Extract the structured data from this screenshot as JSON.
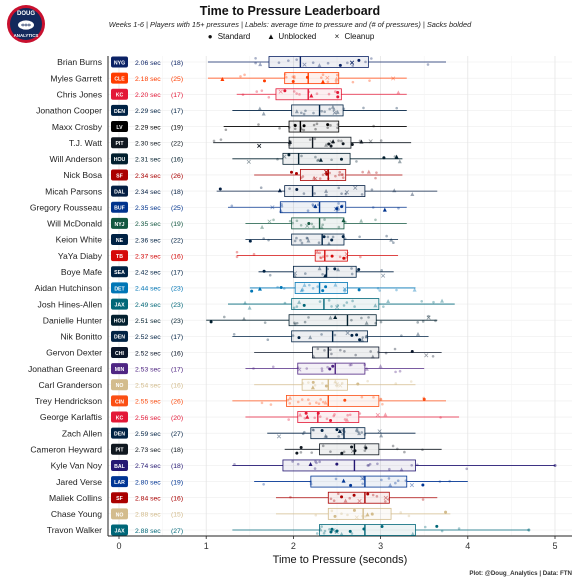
{
  "title": "Time to Pressure Leaderboard",
  "subtitle": "Weeks 1-6 | Players with 15+ pressures | Labels: average time to pressure and (# of pressures) | Sacks bolded",
  "legend": {
    "standard": "Standard",
    "unblocked": "Unblocked",
    "cleanup": "Cleanup",
    "standard_symbol": "●",
    "unblocked_symbol": "▲",
    "cleanup_symbol": "×"
  },
  "caption": "Plot: @Doug_Analytics  |  Data: FTN",
  "logo": {
    "line1": "DOUG",
    "line2": "ANALYTICS",
    "icon": "football-logo-icon"
  },
  "chart_data": {
    "type": "boxplot",
    "xlabel": "Time to Pressure (seconds)",
    "xlim": [
      0,
      5
    ],
    "xticks": [
      0,
      1,
      2,
      3,
      4,
      5
    ],
    "grid": true,
    "legend_position": "top",
    "sec_suffix": "sec",
    "players": [
      {
        "name": "Brian Burns",
        "team": "NYG",
        "color": "#0b2265",
        "avg": "2.06",
        "n": 18,
        "q1": 1.72,
        "med": 2.08,
        "q3": 2.86,
        "lo": 1.02,
        "hi": 3.75
      },
      {
        "name": "Myles Garrett",
        "team": "CLE",
        "color": "#ff3c00",
        "avg": "2.18",
        "n": 25,
        "q1": 1.9,
        "med": 2.17,
        "q3": 2.52,
        "lo": 1.02,
        "hi": 3.3
      },
      {
        "name": "Chris Jones",
        "team": "KC",
        "color": "#e31837",
        "avg": "2.20",
        "n": 17,
        "q1": 1.8,
        "med": 2.17,
        "q3": 2.55,
        "lo": 1.35,
        "hi": 3.3
      },
      {
        "name": "Jonathon Cooper",
        "team": "DEN",
        "color": "#002244",
        "avg": "2.29",
        "n": 17,
        "q1": 1.98,
        "med": 2.3,
        "q3": 2.57,
        "lo": 1.3,
        "hi": 3.3
      },
      {
        "name": "Maxx Crosby",
        "team": "LV",
        "color": "#000000",
        "avg": "2.29",
        "n": 19,
        "q1": 1.95,
        "med": 2.08,
        "q3": 2.52,
        "lo": 1.2,
        "hi": 3.3
      },
      {
        "name": "T.J. Watt",
        "team": "PIT",
        "color": "#101820",
        "avg": "2.30",
        "n": 22,
        "q1": 1.95,
        "med": 2.22,
        "q3": 2.66,
        "lo": 1.08,
        "hi": 3.35
      },
      {
        "name": "Will Anderson",
        "team": "HOU",
        "color": "#03202f",
        "avg": "2.31",
        "n": 16,
        "q1": 1.88,
        "med": 2.06,
        "q3": 2.65,
        "lo": 1.3,
        "hi": 3.25
      },
      {
        "name": "Nick Bosa",
        "team": "SF",
        "color": "#aa0000",
        "avg": "2.34",
        "n": 26,
        "q1": 2.08,
        "med": 2.4,
        "q3": 2.6,
        "lo": 1.55,
        "hi": 3.25
      },
      {
        "name": "Micah Parsons",
        "team": "DAL",
        "color": "#041e42",
        "avg": "2.34",
        "n": 18,
        "q1": 1.9,
        "med": 2.22,
        "q3": 2.82,
        "lo": 1.12,
        "hi": 3.65
      },
      {
        "name": "Gregory Rousseau",
        "team": "BUF",
        "color": "#00338d",
        "avg": "2.35",
        "n": 25,
        "q1": 1.85,
        "med": 2.3,
        "q3": 2.6,
        "lo": 1.25,
        "hi": 3.3
      },
      {
        "name": "Will McDonald",
        "team": "NYJ",
        "color": "#125740",
        "avg": "2.35",
        "n": 19,
        "q1": 1.98,
        "med": 2.3,
        "q3": 2.58,
        "lo": 1.45,
        "hi": 3.3
      },
      {
        "name": "Keion White",
        "team": "NE",
        "color": "#002244",
        "avg": "2.36",
        "n": 22,
        "q1": 1.98,
        "med": 2.33,
        "q3": 2.58,
        "lo": 1.45,
        "hi": 3.2
      },
      {
        "name": "YaYa Diaby",
        "team": "TB",
        "color": "#d50a0a",
        "avg": "2.37",
        "n": 16,
        "q1": 2.25,
        "med": 2.36,
        "q3": 2.62,
        "lo": 1.35,
        "hi": 3.2
      },
      {
        "name": "Boye Mafe",
        "team": "SEA",
        "color": "#002244",
        "avg": "2.42",
        "n": 17,
        "q1": 2.0,
        "med": 2.38,
        "q3": 2.72,
        "lo": 1.6,
        "hi": 3.15
      },
      {
        "name": "Aidan Hutchinson",
        "team": "DET",
        "color": "#0076b6",
        "avg": "2.44",
        "n": 23,
        "q1": 2.02,
        "med": 2.3,
        "q3": 2.62,
        "lo": 1.5,
        "hi": 3.4
      },
      {
        "name": "Josh Hines-Allen",
        "team": "JAX",
        "color": "#006778",
        "avg": "2.49",
        "n": 23,
        "q1": 1.98,
        "med": 2.35,
        "q3": 2.98,
        "lo": 1.25,
        "hi": 3.85
      },
      {
        "name": "Danielle Hunter",
        "team": "HOU",
        "color": "#03202f",
        "avg": "2.51",
        "n": 23,
        "q1": 1.95,
        "med": 2.62,
        "q3": 2.95,
        "lo": 1.0,
        "hi": 3.65
      },
      {
        "name": "Nik Bonitto",
        "team": "DEN",
        "color": "#002244",
        "avg": "2.52",
        "n": 17,
        "q1": 1.98,
        "med": 2.45,
        "q3": 2.85,
        "lo": 1.3,
        "hi": 3.55
      },
      {
        "name": "Gervon Dexter",
        "team": "CHI",
        "color": "#0b162a",
        "avg": "2.52",
        "n": 16,
        "q1": 2.22,
        "med": 2.4,
        "q3": 2.98,
        "lo": 1.55,
        "hi": 3.7
      },
      {
        "name": "Jonathan Greenard",
        "team": "MIN",
        "color": "#4f2683",
        "avg": "2.53",
        "n": 17,
        "q1": 2.05,
        "med": 2.48,
        "q3": 2.82,
        "lo": 1.45,
        "hi": 3.5
      },
      {
        "name": "Carl Granderson",
        "team": "NO",
        "color": "#d3bc8d",
        "avg": "2.54",
        "n": 16,
        "q1": 2.1,
        "med": 2.4,
        "q3": 2.62,
        "lo": 1.55,
        "hi": 3.4
      },
      {
        "name": "Trey Hendrickson",
        "team": "CIN",
        "color": "#fb4f14",
        "avg": "2.55",
        "n": 26,
        "q1": 1.92,
        "med": 2.4,
        "q3": 2.98,
        "lo": 1.3,
        "hi": 3.75
      },
      {
        "name": "George Karlaftis",
        "team": "KC",
        "color": "#e31837",
        "avg": "2.56",
        "n": 20,
        "q1": 2.05,
        "med": 2.28,
        "q3": 2.75,
        "lo": 1.45,
        "hi": 3.9
      },
      {
        "name": "Zach Allen",
        "team": "DEN",
        "color": "#002244",
        "avg": "2.59",
        "n": 27,
        "q1": 2.2,
        "med": 2.58,
        "q3": 2.82,
        "lo": 1.7,
        "hi": 3.4
      },
      {
        "name": "Cameron Heyward",
        "team": "PIT",
        "color": "#101820",
        "avg": "2.73",
        "n": 18,
        "q1": 2.3,
        "med": 2.7,
        "q3": 2.98,
        "lo": 1.9,
        "hi": 3.7
      },
      {
        "name": "Kyle Van Noy",
        "team": "BAL",
        "color": "#241773",
        "avg": "2.74",
        "n": 18,
        "q1": 1.88,
        "med": 2.7,
        "q3": 3.4,
        "lo": 1.3,
        "hi": 5.0
      },
      {
        "name": "Jared Verse",
        "team": "LAR",
        "color": "#003594",
        "avg": "2.80",
        "n": 19,
        "q1": 2.2,
        "med": 2.82,
        "q3": 3.3,
        "lo": 1.55,
        "hi": 4.0
      },
      {
        "name": "Maliek Collins",
        "team": "SF",
        "color": "#aa0000",
        "avg": "2.84",
        "n": 16,
        "q1": 2.4,
        "med": 2.82,
        "q3": 3.1,
        "lo": 1.8,
        "hi": 3.65
      },
      {
        "name": "Chase Young",
        "team": "NO",
        "color": "#d3bc8d",
        "avg": "2.88",
        "n": 15,
        "q1": 2.4,
        "med": 2.8,
        "q3": 3.12,
        "lo": 1.8,
        "hi": 3.8
      },
      {
        "name": "Travon Walker",
        "team": "JAX",
        "color": "#006778",
        "avg": "2.88",
        "n": 27,
        "q1": 2.3,
        "med": 2.82,
        "q3": 3.4,
        "lo": 1.3,
        "hi": 4.7
      }
    ]
  }
}
